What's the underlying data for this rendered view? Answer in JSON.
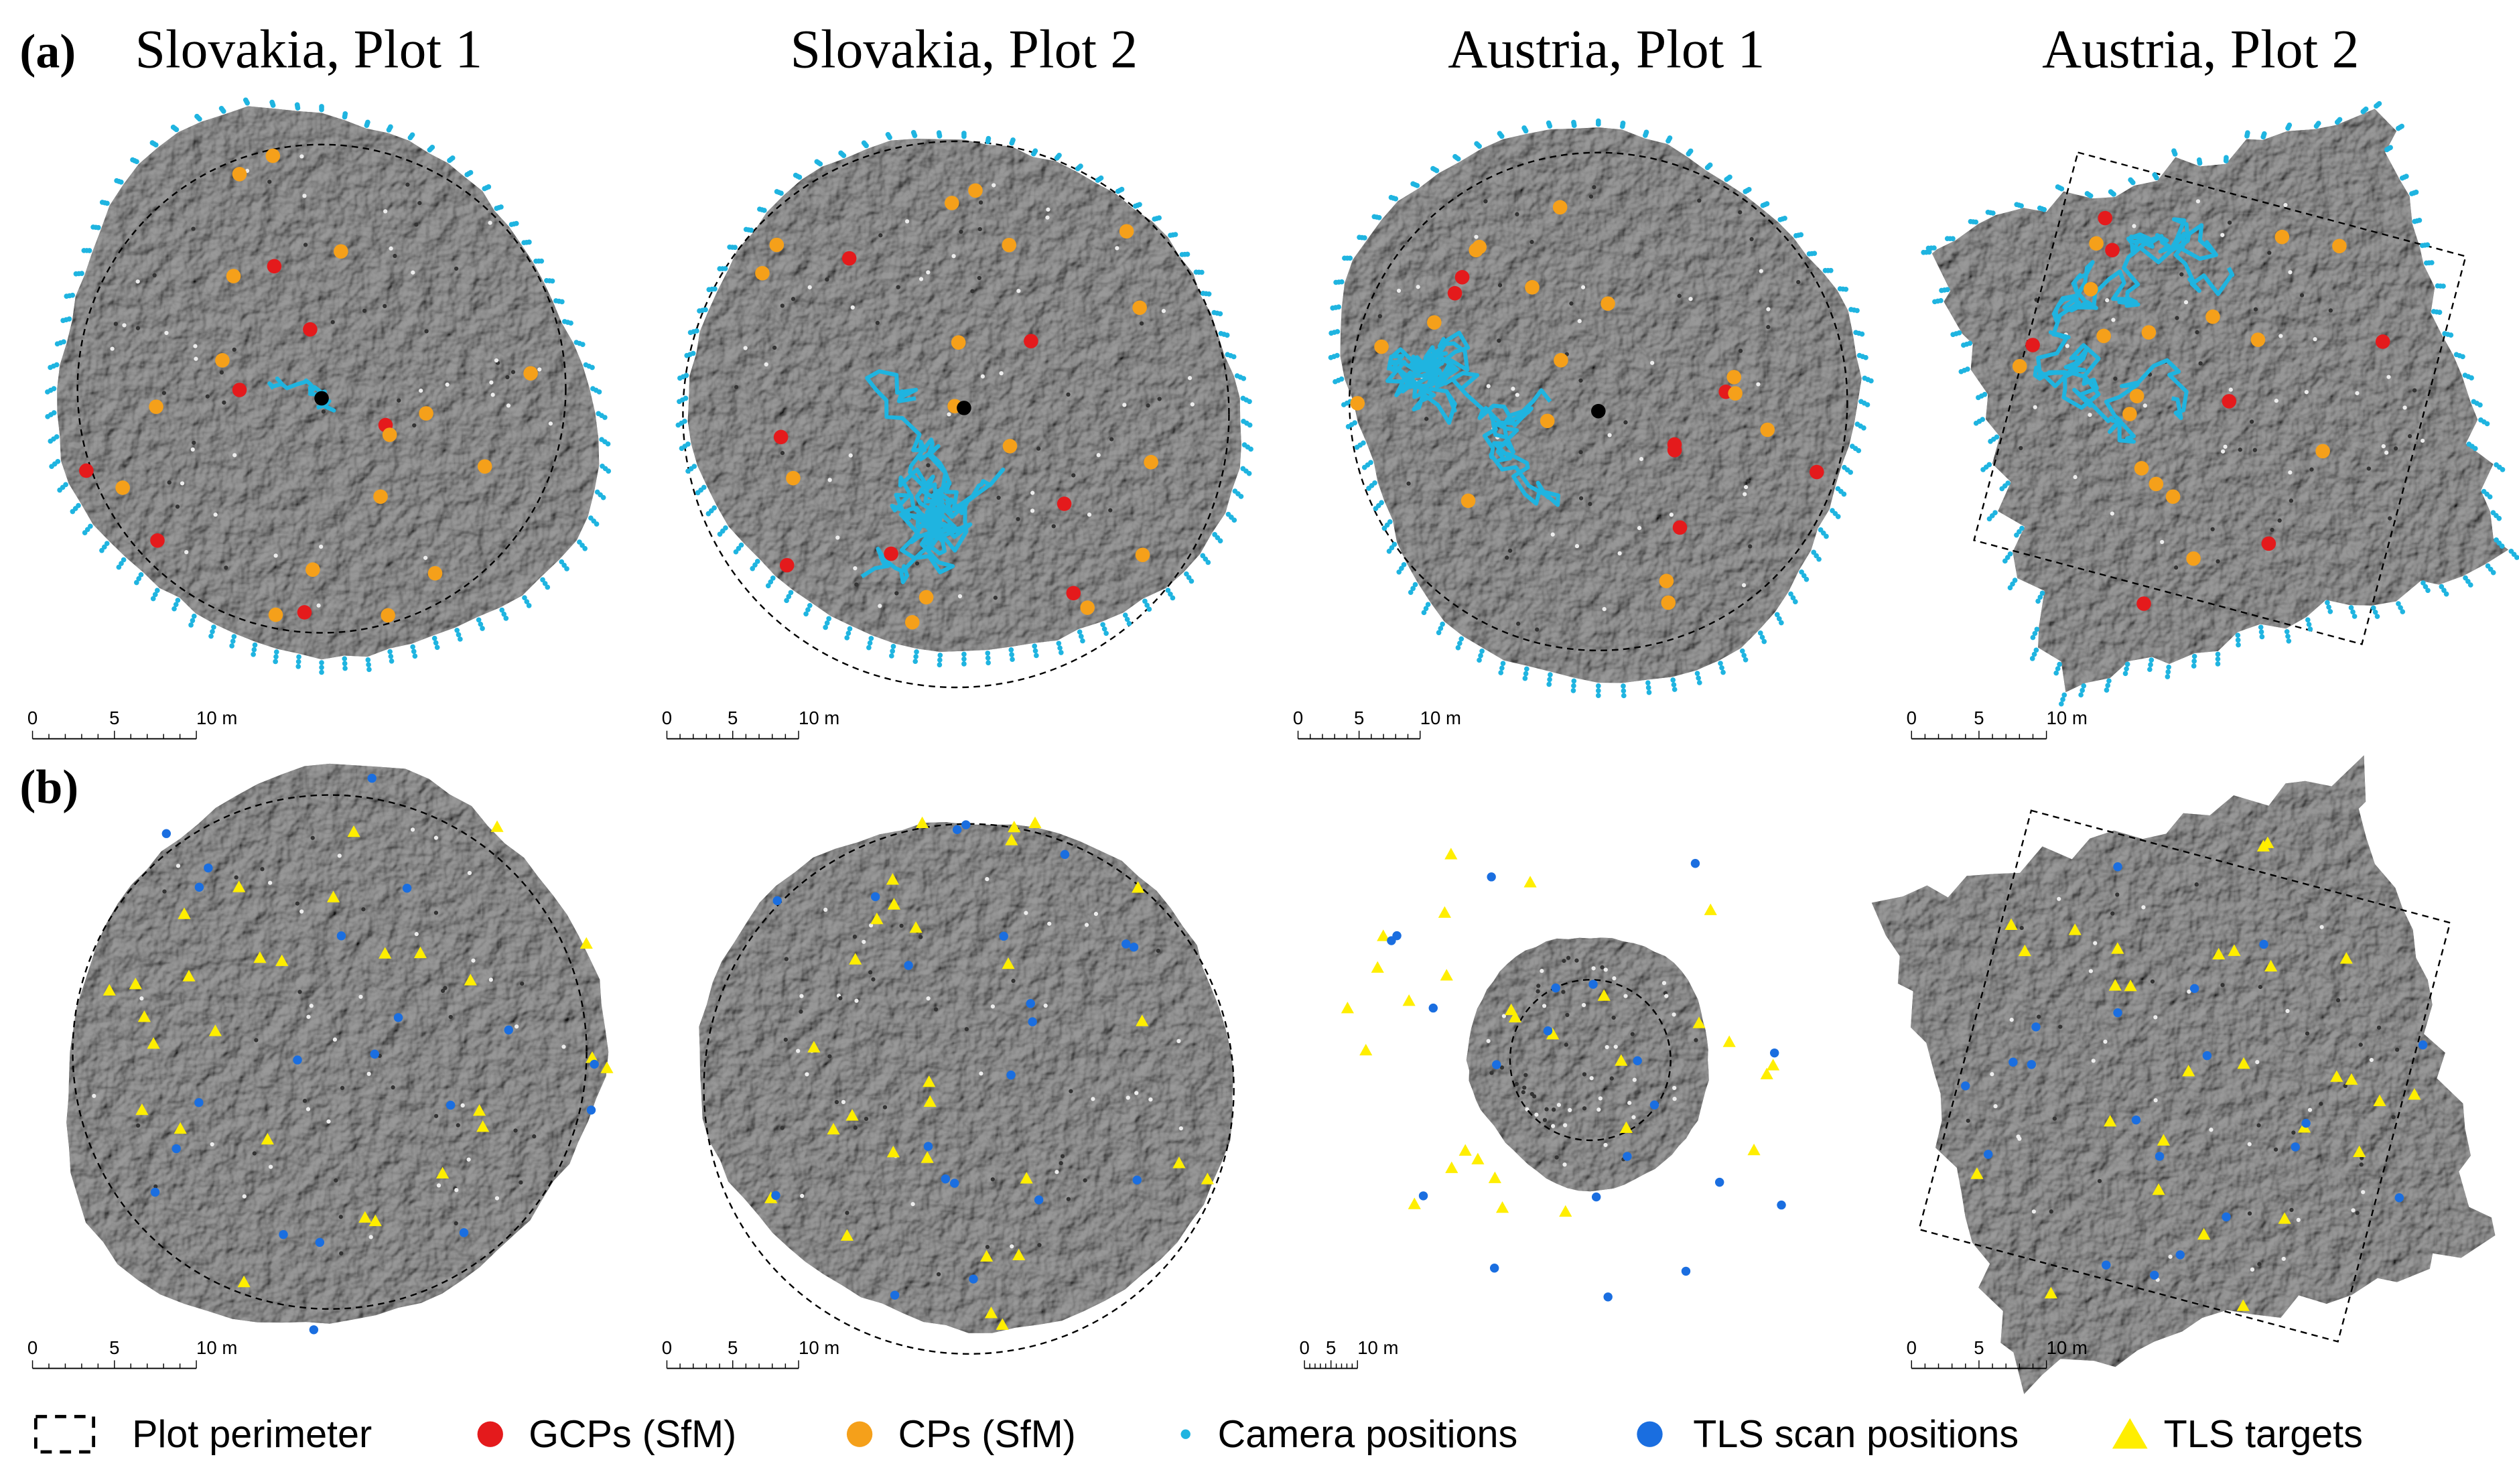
{
  "rows": [
    {
      "label": "(a)",
      "plots": [
        {
          "title": "Slovakia, Plot 1",
          "scale": [
            "0",
            "5",
            "10 m"
          ]
        },
        {
          "title": "Slovakia, Plot 2",
          "scale": [
            "0",
            "5",
            "10 m"
          ]
        },
        {
          "title": "Austria, Plot 1",
          "scale": [
            "0",
            "5",
            "10 m"
          ]
        },
        {
          "title": "Austria, Plot 2",
          "scale": [
            "0",
            "5",
            "10 m"
          ]
        }
      ]
    },
    {
      "label": "(b)",
      "plots": [
        {
          "scale": [
            "0",
            "5",
            "10 m"
          ]
        },
        {
          "scale": [
            "0",
            "5",
            "10 m"
          ]
        },
        {
          "scale": [
            "0",
            "5",
            "10 m"
          ]
        },
        {
          "scale": [
            "0",
            "5",
            "10 m"
          ]
        }
      ]
    }
  ],
  "legend": [
    "Plot perimeter",
    "GCPs (SfM)",
    "CPs (SfM)",
    "Camera positions",
    "TLS scan positions",
    "TLS targets"
  ]
}
